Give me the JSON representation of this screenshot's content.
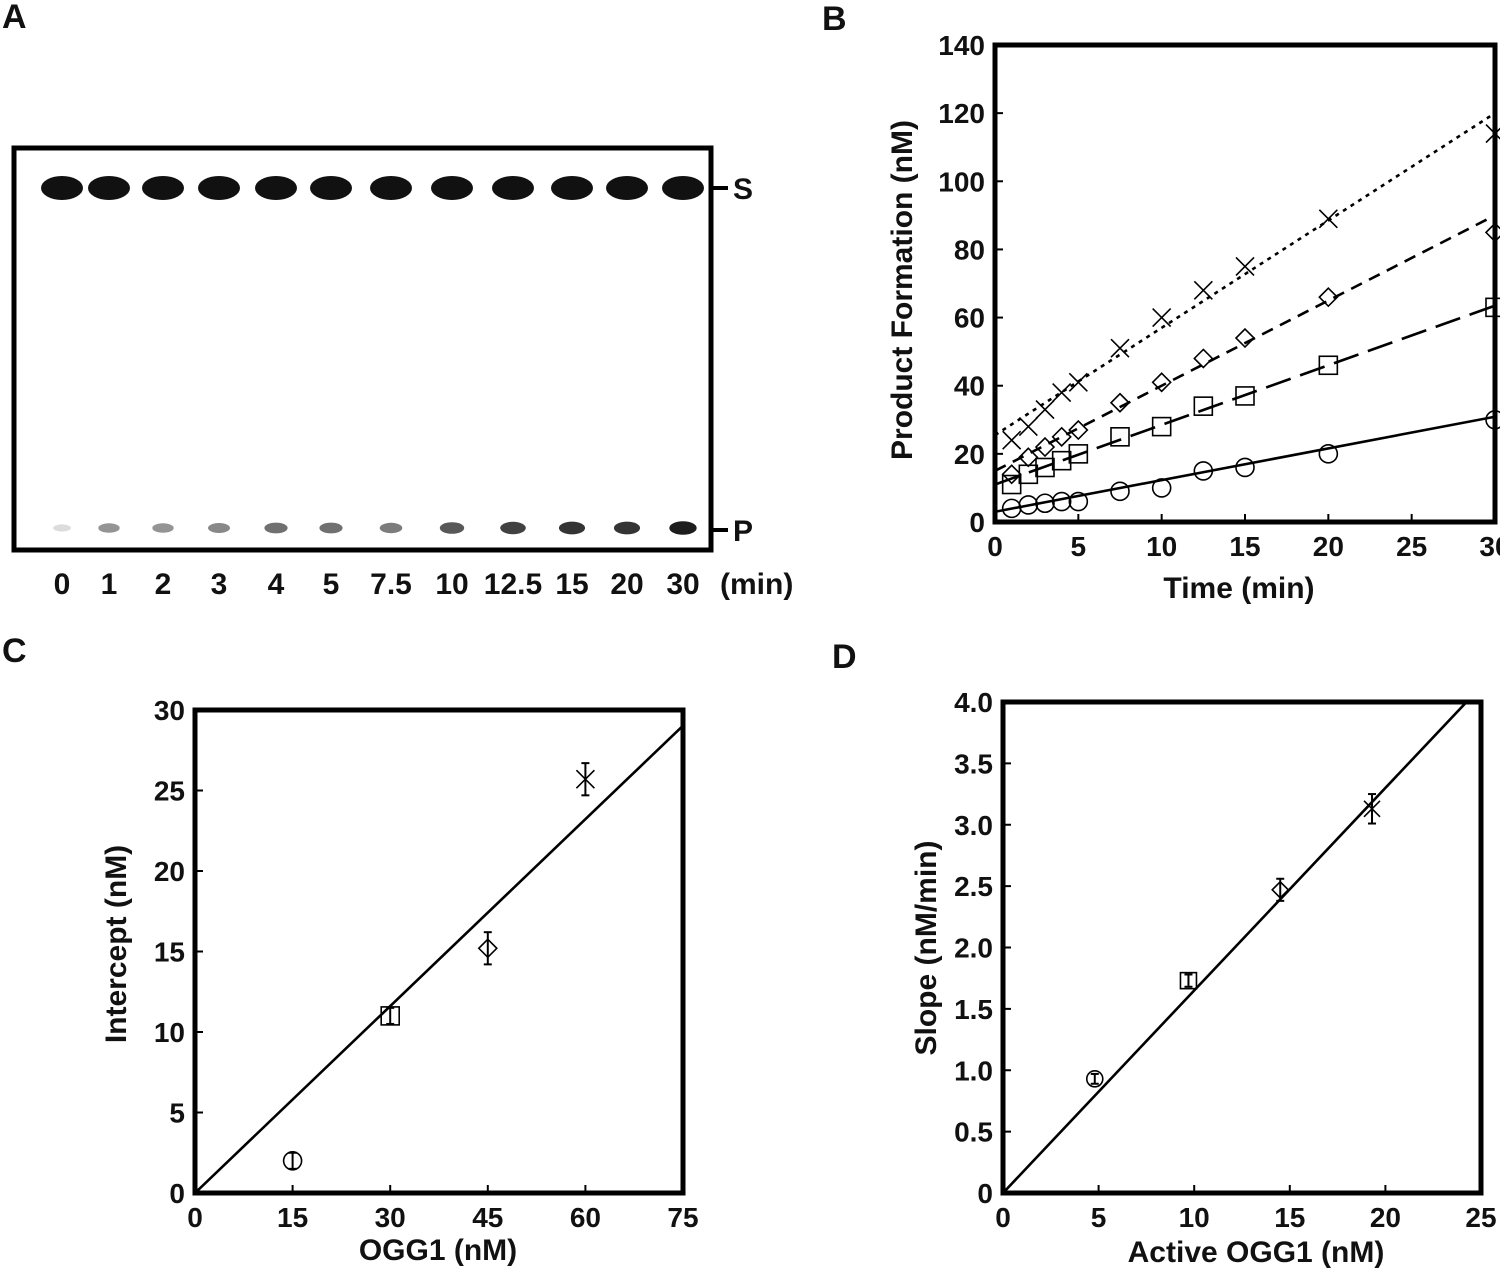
{
  "panels": {
    "A": "A",
    "B": "B",
    "C": "C",
    "D": "D"
  },
  "gel": {
    "lane_labels": [
      "0",
      "1",
      "2",
      "3",
      "4",
      "5",
      "7.5",
      "10",
      "12.5",
      "15",
      "20",
      "30"
    ],
    "unit_label": "(min)",
    "substrate_label": "S",
    "product_label": "P",
    "product_band_intensity": [
      0.15,
      0.45,
      0.45,
      0.5,
      0.6,
      0.6,
      0.55,
      0.7,
      0.8,
      0.85,
      0.85,
      0.95
    ],
    "substrate_band_intensity": [
      1,
      1,
      1,
      1,
      1,
      1,
      1,
      1,
      1,
      1,
      1,
      1
    ]
  },
  "chart_data": [
    {
      "type": "scatter",
      "panel": "B",
      "xlabel": "Time (min)",
      "ylabel": "Product Formation (nM)",
      "xlim": [
        0,
        30
      ],
      "ylim": [
        0,
        140
      ],
      "xticks": [
        "0",
        "5",
        "10",
        "15",
        "20",
        "25",
        "30"
      ],
      "yticks": [
        "0",
        "20",
        "40",
        "60",
        "80",
        "100",
        "120",
        "140"
      ],
      "series": [
        {
          "name": "circle",
          "marker": "circle",
          "line": "solid",
          "fit": [
            3,
            0.93
          ],
          "x": [
            1,
            2,
            3,
            4,
            5,
            7.5,
            10,
            12.5,
            15,
            20,
            30
          ],
          "y": [
            4,
            5,
            5.5,
            6,
            6,
            9,
            10,
            15,
            16,
            20,
            30
          ]
        },
        {
          "name": "square",
          "marker": "square",
          "line": "longdash",
          "fit": [
            11,
            1.75
          ],
          "x": [
            1,
            2,
            3,
            4,
            5,
            7.5,
            10,
            12.5,
            15,
            20,
            30
          ],
          "y": [
            11,
            14,
            16,
            18,
            20,
            25,
            28,
            34,
            37,
            46,
            63
          ]
        },
        {
          "name": "diamond",
          "marker": "diamond",
          "line": "dash",
          "fit": [
            15,
            2.5
          ],
          "x": [
            1,
            2,
            3,
            4,
            5,
            7.5,
            10,
            12.5,
            15,
            20,
            30
          ],
          "y": [
            14,
            19,
            22,
            25,
            27,
            35,
            41,
            48,
            54,
            66,
            85
          ]
        },
        {
          "name": "cross",
          "marker": "x",
          "line": "dot",
          "fit": [
            25.5,
            3.15
          ],
          "x": [
            1,
            2,
            3,
            4,
            5,
            7.5,
            10,
            12.5,
            15,
            20,
            30
          ],
          "y": [
            24,
            28,
            33,
            38,
            41,
            51,
            60,
            68,
            75,
            89,
            114
          ]
        }
      ]
    },
    {
      "type": "scatter",
      "panel": "C",
      "xlabel": "OGG1 (nM)",
      "ylabel": "Intercept (nM)",
      "xlim": [
        0,
        75
      ],
      "ylim": [
        0,
        30
      ],
      "xticks": [
        "0",
        "15",
        "30",
        "45",
        "60",
        "75"
      ],
      "yticks": [
        "0",
        "5",
        "10",
        "15",
        "20",
        "25",
        "30"
      ],
      "fit": [
        0,
        0.387
      ],
      "points": [
        {
          "x": 15,
          "y": 2.0,
          "err": 0.5,
          "marker": "circle"
        },
        {
          "x": 30,
          "y": 11.0,
          "err": 0.5,
          "marker": "square"
        },
        {
          "x": 45,
          "y": 15.2,
          "err": 1.0,
          "marker": "diamond"
        },
        {
          "x": 60,
          "y": 25.7,
          "err": 1.0,
          "marker": "x"
        }
      ]
    },
    {
      "type": "scatter",
      "panel": "D",
      "xlabel": "Active OGG1 (nM)",
      "ylabel": "Slope (nM/min)",
      "xlim": [
        0,
        25
      ],
      "ylim": [
        0,
        4.0
      ],
      "xticks": [
        "0",
        "5",
        "10",
        "15",
        "20",
        "25"
      ],
      "yticks": [
        "0",
        "0.5",
        "1.0",
        "1.5",
        "2.0",
        "2.5",
        "3.0",
        "3.5",
        "4.0"
      ],
      "fit": [
        0,
        0.165
      ],
      "points": [
        {
          "x": 4.8,
          "y": 0.93,
          "err": 0.04,
          "marker": "circle"
        },
        {
          "x": 9.7,
          "y": 1.73,
          "err": 0.05,
          "marker": "square"
        },
        {
          "x": 14.5,
          "y": 2.47,
          "err": 0.09,
          "marker": "diamond"
        },
        {
          "x": 19.3,
          "y": 3.13,
          "err": 0.12,
          "marker": "x"
        }
      ]
    }
  ]
}
